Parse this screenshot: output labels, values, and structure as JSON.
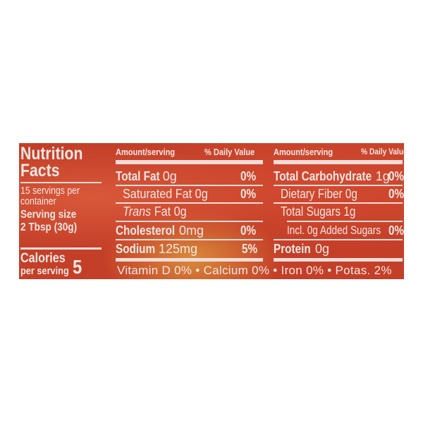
{
  "left": {
    "title1": "Nutrition",
    "title2": "Facts",
    "servings1": "15 servings per",
    "servings2": "container",
    "serving_size_label": "Serving size",
    "serving_size": "2 Tbsp (30g)",
    "calories_label": "Calories",
    "per_serving": "per serving",
    "calories": "5"
  },
  "header": {
    "amount": "Amount/serving",
    "dv": "% Daily Value"
  },
  "middle": [
    {
      "name": "Total Fat",
      "amount": "0g",
      "dv": "0%"
    },
    {
      "name": "Saturated Fat",
      "amount": "0g",
      "dv": "0%"
    },
    {
      "name": "Trans",
      "name2": "Fat",
      "amount": "0g",
      "dv": ""
    },
    {
      "name": "Cholesterol",
      "amount": "0mg",
      "dv": "0%"
    },
    {
      "name": "Sodium",
      "amount": "125mg",
      "dv": "5%"
    }
  ],
  "right": [
    {
      "name": "Total Carbohydrate",
      "amount": "1g",
      "dv": "0%"
    },
    {
      "name": "Dietary Fiber",
      "amount": "0g",
      "dv": "0%"
    },
    {
      "name": "Total Sugars",
      "amount": "1g",
      "dv": ""
    },
    {
      "name": "Incl. 0g Added Sugars",
      "amount": "",
      "dv": "0%"
    },
    {
      "name": "Protein",
      "amount": "0g",
      "dv": ""
    }
  ],
  "footer": "Vitamin D 0% • Calcium 0% • Iron 0% • Potas. 2%"
}
